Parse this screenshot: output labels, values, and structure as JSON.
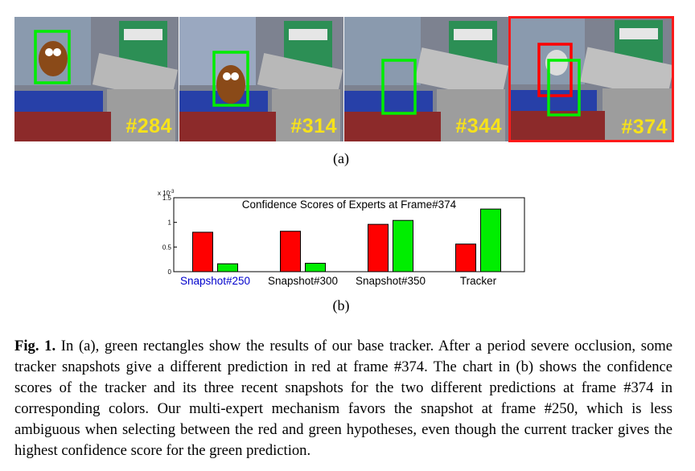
{
  "frames": [
    {
      "label": "#284",
      "highlighted": false
    },
    {
      "label": "#314",
      "highlighted": false
    },
    {
      "label": "#344",
      "highlighted": false
    },
    {
      "label": "#374",
      "highlighted": true
    }
  ],
  "colors": {
    "red": "#ff0000",
    "green": "#00ee00",
    "frame_num": "#f7e21a",
    "highlight_label": "#0000cc"
  },
  "panel_a_label": "(a)",
  "panel_b_label": "(b)",
  "chart_data": {
    "type": "bar",
    "title": "Confidence Scores of Experts at Frame#374",
    "exponent_label": "x 10",
    "exponent_power": "-3",
    "categories": [
      "Snapshot#250",
      "Snapshot#300",
      "Snapshot#350",
      "Tracker"
    ],
    "highlighted_category": "Snapshot#250",
    "series": [
      {
        "color": "#ff0000",
        "values": [
          0.8,
          0.82,
          0.96,
          0.56
        ]
      },
      {
        "color": "#00ee00",
        "values": [
          0.16,
          0.17,
          1.04,
          1.27
        ]
      }
    ],
    "ylim": [
      0,
      1.5
    ],
    "yticks": [
      "0",
      "0.5",
      "1",
      "1.5"
    ],
    "grid": false
  },
  "caption": {
    "fig_label": "Fig. 1.",
    "text": " In (a), green rectangles show the results of our base tracker. After a period severe occlusion, some tracker snapshots give a different prediction in red at frame #374. The chart in (b) shows the confidence scores of the tracker and its three recent snapshots for the two different predictions at frame #374 in corresponding colors. Our multi-expert mechanism favors the snapshot at frame #250, which is less ambiguous when selecting between the red and green hypotheses, even though the current tracker gives the highest confidence score for the green prediction."
  }
}
